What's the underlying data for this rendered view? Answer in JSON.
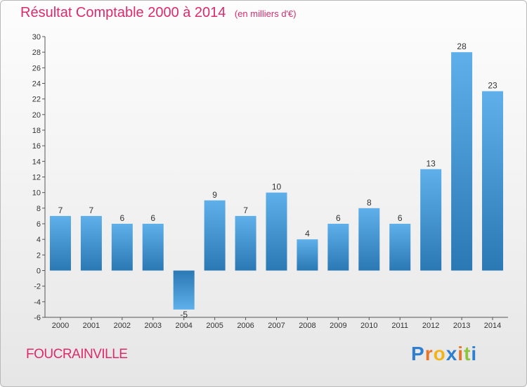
{
  "title": "Résultat Comptable 2000 à 2014",
  "subtitle": "(en milliers d'€)",
  "commune": "FOUCRAINVILLE",
  "brand": {
    "letters": [
      "P",
      "r",
      "o",
      "x",
      "i",
      "t",
      "i"
    ],
    "colors": [
      "#2f7fd0",
      "#e8742a",
      "#f2b41c",
      "#2f7fd0",
      "#e8742a",
      "#8cc43c",
      "#2f7fd0"
    ]
  },
  "colors": {
    "bar_top": "#5fb0ea",
    "bar_bottom": "#2a78b4",
    "title": "#dd2a6b"
  },
  "chart_data": {
    "type": "bar",
    "title": "Résultat Comptable 2000 à 2014",
    "subtitle": "(en milliers d'€)",
    "categories": [
      "2000",
      "2001",
      "2002",
      "2003",
      "2004",
      "2005",
      "2006",
      "2007",
      "2008",
      "2009",
      "2010",
      "2011",
      "2012",
      "2013",
      "2014"
    ],
    "values": [
      7,
      7,
      6,
      6,
      -5,
      9,
      7,
      10,
      4,
      6,
      8,
      6,
      13,
      28,
      23
    ],
    "ylim": [
      -6,
      30
    ],
    "yticks": [
      -6,
      -4,
      -2,
      0,
      2,
      4,
      6,
      8,
      10,
      12,
      14,
      16,
      18,
      20,
      22,
      24,
      26,
      28,
      30
    ],
    "grid": false,
    "xlabel": "",
    "ylabel": ""
  }
}
